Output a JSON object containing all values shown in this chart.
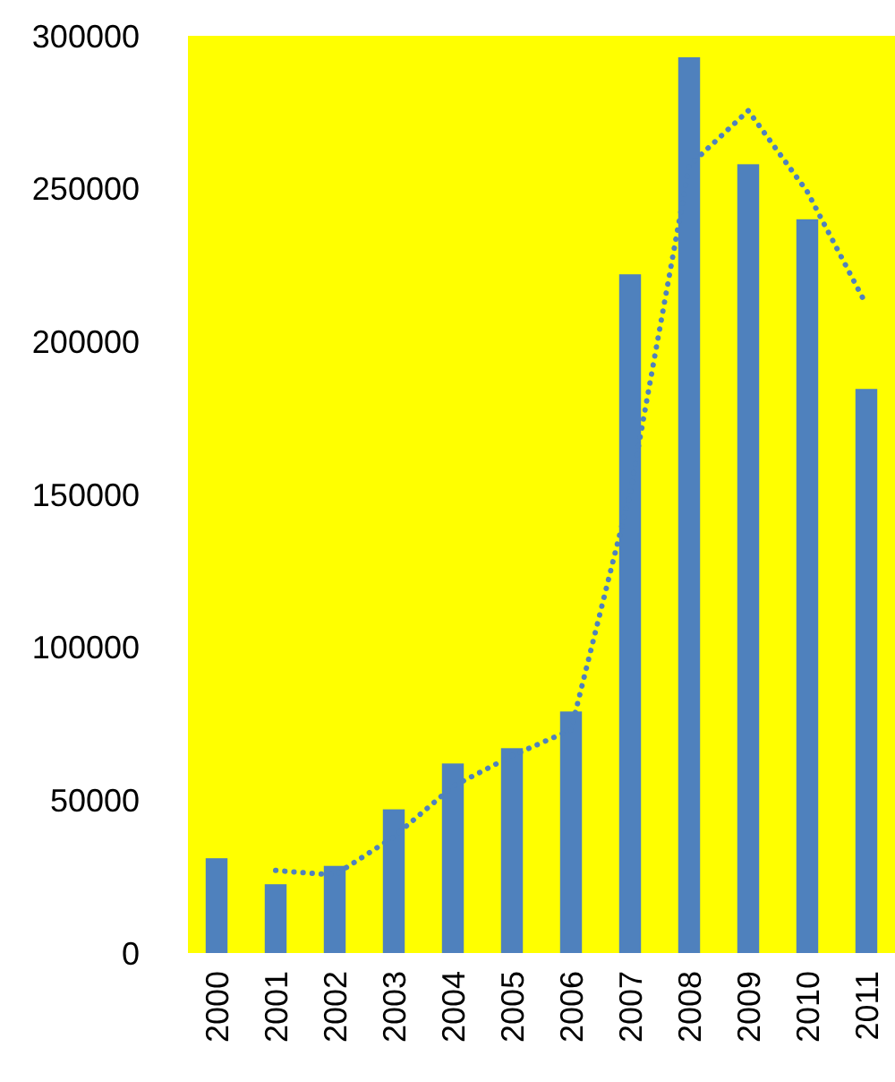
{
  "chart_data": {
    "type": "bar",
    "categories": [
      "2000",
      "2001",
      "2002",
      "2003",
      "2004",
      "2005",
      "2006",
      "2007",
      "2008",
      "2009",
      "2010",
      "2011"
    ],
    "series": [
      {
        "color": "#4f81bd",
        "values": [
          31000,
          22500,
          28500,
          47000,
          62000,
          67000,
          79000,
          222000,
          293000,
          258000,
          240000,
          184500
        ]
      },
      {
        "type": "line",
        "color": "#4f81bd",
        "line_style": "dotted",
        "values": [
          null,
          27000,
          25500,
          38000,
          54500,
          64500,
          73000,
          150500,
          257500,
          275500,
          249000,
          212000
        ]
      }
    ],
    "ylim": [
      0,
      300000
    ],
    "yticks": [
      0,
      50000,
      100000,
      150000,
      200000,
      250000,
      300000
    ],
    "grid": false
  }
}
